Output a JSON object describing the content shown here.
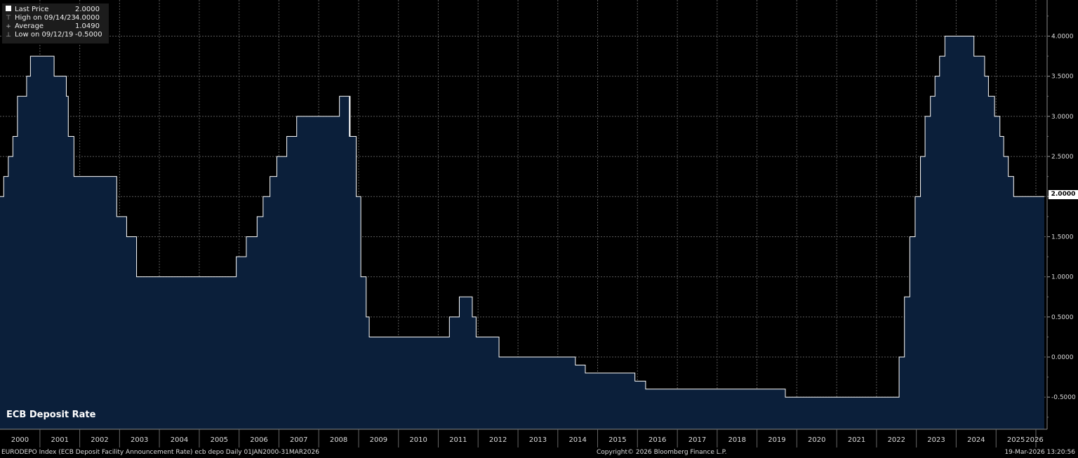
{
  "chart_data": {
    "type": "area",
    "title": "ECB Deposit Rate",
    "x_range": [
      "2000-01-01",
      "2026-03-31"
    ],
    "ylim": [
      -0.9,
      4.45
    ],
    "y_ticks": [
      "4.0000",
      "3.5000",
      "3.0000",
      "2.5000",
      "2.0000",
      "1.5000",
      "1.0000",
      "0.5000",
      "0.0000",
      "-0.5000"
    ],
    "y_tick_values": [
      4.0,
      3.5,
      3.0,
      2.5,
      2.0,
      1.5,
      1.0,
      0.5,
      0.0,
      -0.5
    ],
    "x_ticks": [
      "2000",
      "2001",
      "2002",
      "2003",
      "2004",
      "2005",
      "2006",
      "2007",
      "2008",
      "2009",
      "2010",
      "2011",
      "2012",
      "2013",
      "2014",
      "2015",
      "2016",
      "2017",
      "2018",
      "2019",
      "2020",
      "2021",
      "2022",
      "2023",
      "2024",
      "2025",
      "2026"
    ],
    "grid": true,
    "colors": {
      "fill": "#0b1f3a",
      "line": "#ffffff",
      "grid": "#5a5a5a"
    },
    "series": [
      {
        "name": "Last Price",
        "steps": [
          [
            "2000-01-01",
            2.0
          ],
          [
            "2000-02-04",
            2.25
          ],
          [
            "2000-03-17",
            2.5
          ],
          [
            "2000-04-28",
            2.75
          ],
          [
            "2000-06-09",
            3.25
          ],
          [
            "2000-09-01",
            3.5
          ],
          [
            "2000-10-06",
            3.75
          ],
          [
            "2001-05-11",
            3.5
          ],
          [
            "2001-08-31",
            3.25
          ],
          [
            "2001-09-18",
            2.75
          ],
          [
            "2001-11-09",
            2.25
          ],
          [
            "2002-12-06",
            1.75
          ],
          [
            "2003-03-07",
            1.5
          ],
          [
            "2003-06-06",
            1.0
          ],
          [
            "2005-12-06",
            1.25
          ],
          [
            "2006-03-08",
            1.5
          ],
          [
            "2006-06-15",
            1.75
          ],
          [
            "2006-08-09",
            2.0
          ],
          [
            "2006-10-11",
            2.25
          ],
          [
            "2006-12-13",
            2.5
          ],
          [
            "2007-03-14",
            2.75
          ],
          [
            "2007-06-13",
            3.0
          ],
          [
            "2008-07-09",
            3.25
          ],
          [
            "2008-10-08",
            2.75
          ],
          [
            "2008-10-09",
            3.25
          ],
          [
            "2008-10-15",
            2.75
          ],
          [
            "2008-11-12",
            2.75
          ],
          [
            "2008-12-10",
            2.0
          ],
          [
            "2009-01-21",
            1.0
          ],
          [
            "2009-03-11",
            0.5
          ],
          [
            "2009-04-08",
            0.25
          ],
          [
            "2011-04-13",
            0.5
          ],
          [
            "2011-07-13",
            0.75
          ],
          [
            "2011-11-09",
            0.5
          ],
          [
            "2011-12-14",
            0.25
          ],
          [
            "2012-07-11",
            0.0
          ],
          [
            "2014-06-11",
            -0.1
          ],
          [
            "2014-09-10",
            -0.2
          ],
          [
            "2015-12-09",
            -0.3
          ],
          [
            "2016-03-16",
            -0.4
          ],
          [
            "2019-09-18",
            -0.5
          ],
          [
            "2022-07-27",
            0.0
          ],
          [
            "2022-09-14",
            0.75
          ],
          [
            "2022-11-02",
            1.5
          ],
          [
            "2022-12-21",
            2.0
          ],
          [
            "2023-02-08",
            2.5
          ],
          [
            "2023-03-22",
            3.0
          ],
          [
            "2023-05-10",
            3.25
          ],
          [
            "2023-06-21",
            3.5
          ],
          [
            "2023-08-02",
            3.75
          ],
          [
            "2023-09-20",
            4.0
          ],
          [
            "2024-06-12",
            3.75
          ],
          [
            "2024-09-18",
            3.5
          ],
          [
            "2024-10-23",
            3.25
          ],
          [
            "2024-12-18",
            3.0
          ],
          [
            "2025-02-05",
            2.75
          ],
          [
            "2025-03-12",
            2.5
          ],
          [
            "2025-04-23",
            2.25
          ],
          [
            "2025-06-11",
            2.0
          ],
          [
            "2026-03-19",
            2.0
          ]
        ]
      }
    ],
    "last_value_label": "2.0000"
  },
  "legend": [
    {
      "icon": "square-icon",
      "label": "Last Price",
      "value": "2.0000"
    },
    {
      "icon": "high-marker-icon",
      "label": "High on 09/14/23",
      "value": "4.0000"
    },
    {
      "icon": "average-marker-icon",
      "label": "Average",
      "value": "1.0490"
    },
    {
      "icon": "low-marker-icon",
      "label": "Low on 09/12/19",
      "value": "-0.5000"
    }
  ],
  "chart_name": "ECB Deposit Rate",
  "footer": {
    "left": "EURODEPO Index (ECB Deposit Facility Announcement Rate) ecb depo Daily 01JAN2000-31MAR2026",
    "center": "Copyright© 2026 Bloomberg Finance L.P.",
    "right": "19-Mar-2026 13:20:56"
  }
}
